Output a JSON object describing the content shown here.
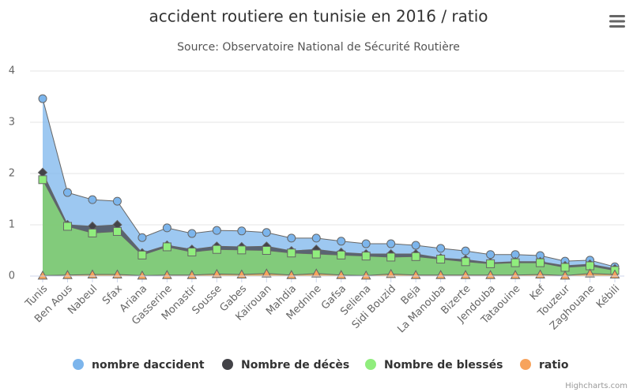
{
  "chart_data": {
    "type": "area",
    "title": "accident routiere en tunisie en 2016 / ratio",
    "subtitle": "Source: Observatoire National de Sécurité Routière",
    "credits": "Highcharts.com",
    "categories": [
      "Tunis",
      "Ben Aous",
      "Nabeul",
      "Sfax",
      "Ariana",
      "Gasserine",
      "Monastir",
      "Sousse",
      "Gabes",
      "Kairouan",
      "Mahdia",
      "Mednine",
      "Gafsa",
      "Seliena",
      "Sidi Bouzid",
      "Beja",
      "La Manouba",
      "Bizerte",
      "Jendouba",
      "Tataouine",
      "Kef",
      "Touzeur",
      "Zaghouane",
      "Kébili"
    ],
    "ylim": [
      0,
      4
    ],
    "yticks": [
      0,
      1,
      2,
      3,
      4
    ],
    "grid": true,
    "series": [
      {
        "name": "nombre daccident",
        "color": "#7cb5ec",
        "marker": "circle",
        "values": [
          3.46,
          1.63,
          1.49,
          1.46,
          0.75,
          0.94,
          0.83,
          0.89,
          0.88,
          0.85,
          0.74,
          0.74,
          0.68,
          0.63,
          0.63,
          0.6,
          0.54,
          0.49,
          0.42,
          0.42,
          0.4,
          0.29,
          0.31,
          0.18
        ]
      },
      {
        "name": "Nombre de décès",
        "color": "#434348",
        "marker": "diamond",
        "values": [
          2.02,
          1.0,
          0.97,
          1.0,
          0.45,
          0.6,
          0.52,
          0.58,
          0.57,
          0.58,
          0.49,
          0.52,
          0.46,
          0.43,
          0.43,
          0.43,
          0.35,
          0.32,
          0.26,
          0.28,
          0.28,
          0.2,
          0.23,
          0.14
        ]
      },
      {
        "name": "Nombre de blessés",
        "color": "#90ed7d",
        "marker": "square",
        "values": [
          1.88,
          0.97,
          0.84,
          0.87,
          0.41,
          0.57,
          0.47,
          0.52,
          0.51,
          0.5,
          0.45,
          0.43,
          0.41,
          0.39,
          0.37,
          0.38,
          0.33,
          0.28,
          0.24,
          0.26,
          0.26,
          0.17,
          0.2,
          0.11
        ]
      },
      {
        "name": "ratio",
        "color": "#f7a35c",
        "marker": "triangle",
        "values": [
          0.01,
          0.02,
          0.03,
          0.03,
          0.01,
          0.02,
          0.02,
          0.04,
          0.03,
          0.05,
          0.02,
          0.05,
          0.02,
          0.01,
          0.04,
          0.02,
          0.02,
          0.02,
          0.02,
          0.02,
          0.03,
          0.01,
          0.05,
          0.03
        ]
      }
    ]
  }
}
